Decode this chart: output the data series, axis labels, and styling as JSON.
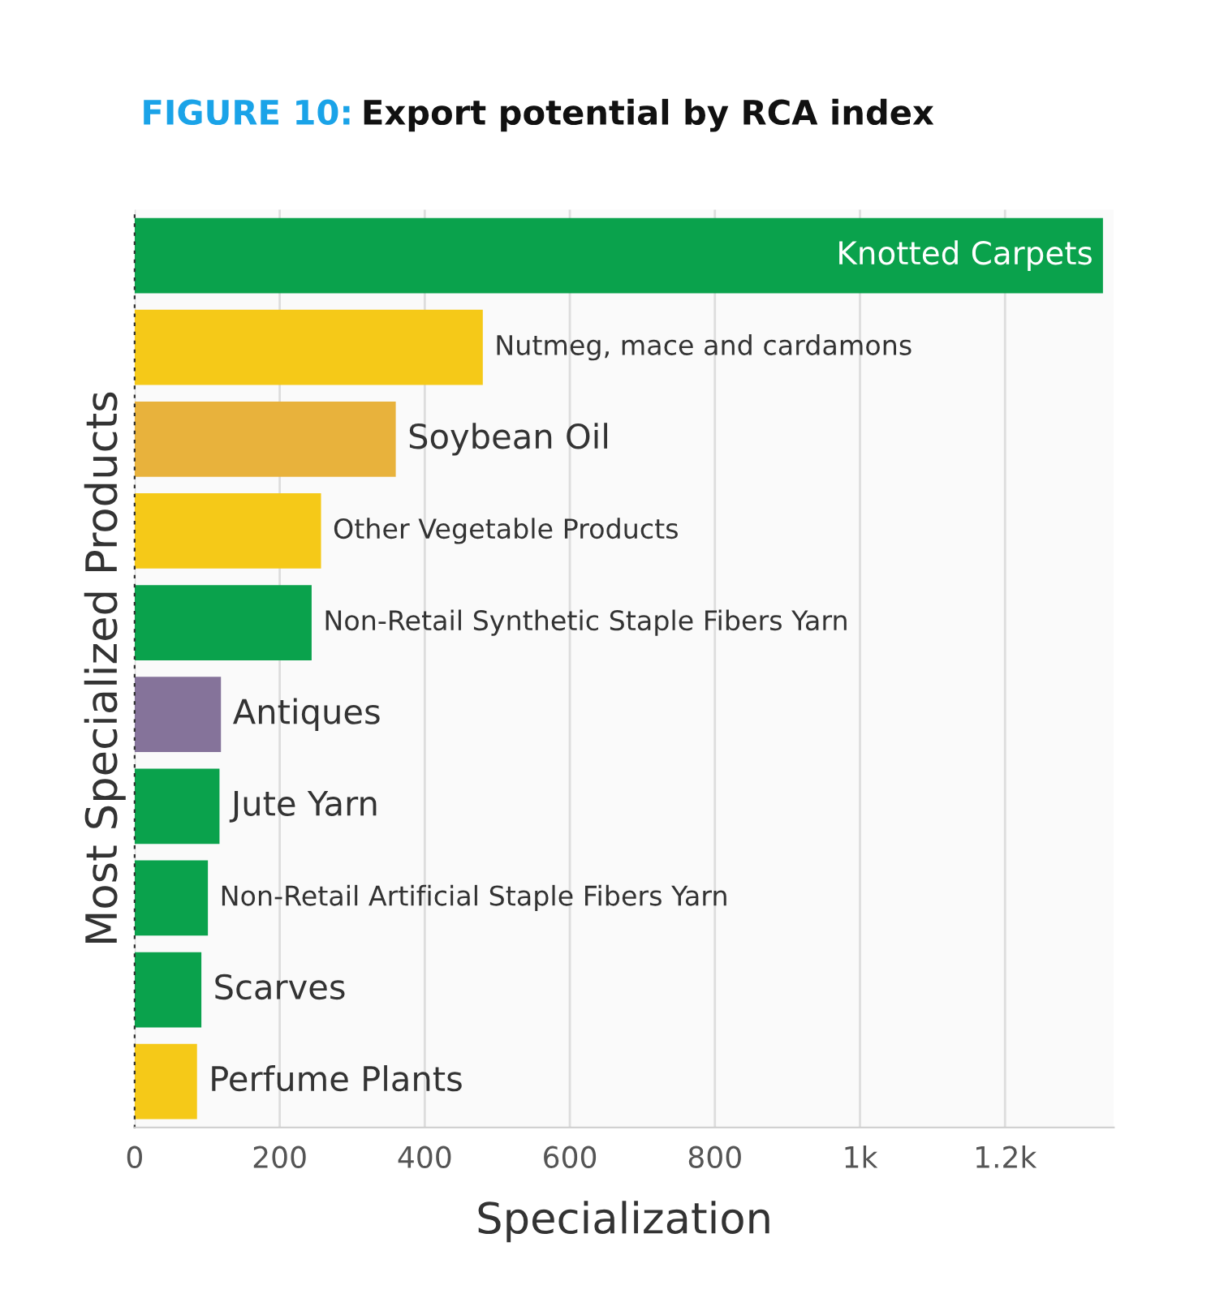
{
  "chart_data": {
    "type": "bar",
    "orientation": "horizontal",
    "title": "FIGURE 10: Export potential by RCA index",
    "xlabel": "Specialization",
    "ylabel": "Most Specialized Products",
    "categories": [
      "Knotted Carpets",
      "Nutmeg, mace and cardamons",
      "Soybean Oil",
      "Other Vegetable Products",
      "Non-Retail Synthetic Staple Fibers Yarn",
      "Antiques",
      "Jute Yarn",
      "Non-Retail Artificial Staple Fibers Yarn",
      "Scarves",
      "Perfume Plants"
    ],
    "values": [
      1335,
      480,
      360,
      257,
      244,
      119,
      117,
      101,
      92,
      86
    ],
    "colors": [
      "#0aa24c",
      "#f5c918",
      "#e8b23c",
      "#f5c918",
      "#0aa24c",
      "#85739a",
      "#0aa24c",
      "#0aa24c",
      "#0aa24c",
      "#f5c918"
    ],
    "xlim": [
      0,
      1350
    ],
    "xticks": [
      0,
      200,
      400,
      600,
      800,
      {
        "value": 1000,
        "label": "1k"
      },
      {
        "value": 1200,
        "label": "1.2k"
      }
    ],
    "grid": "x",
    "tick_labels": "x"
  }
}
